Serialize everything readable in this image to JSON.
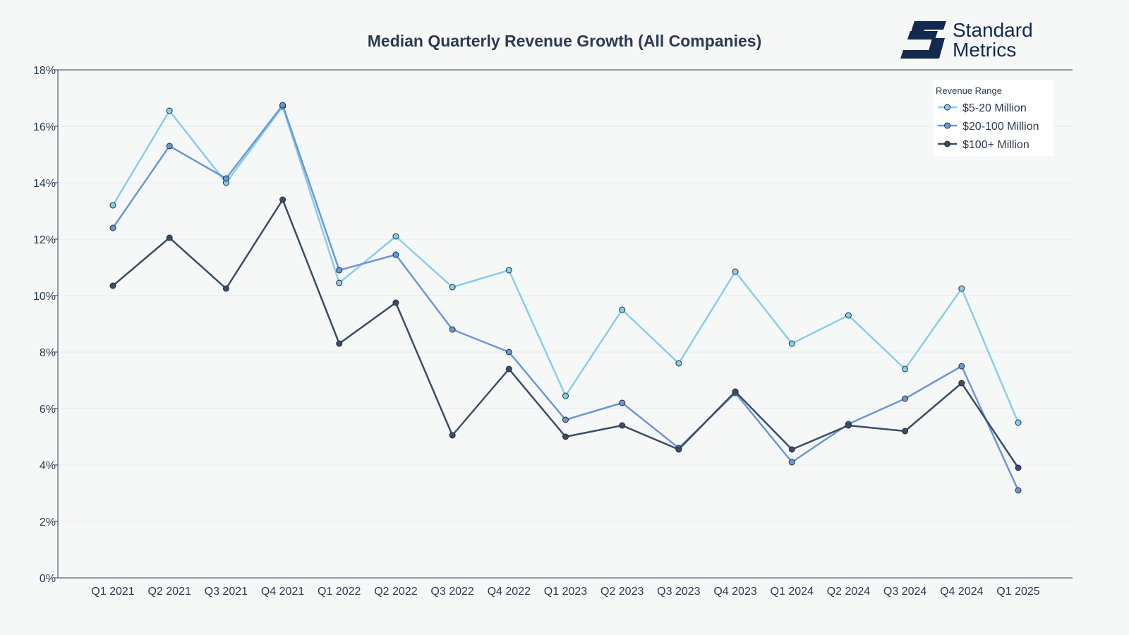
{
  "logo": {
    "line1": "Standard",
    "line2": "Metrics",
    "color": "#122a4d"
  },
  "chart_data": {
    "type": "line",
    "title": "Median Quarterly Revenue Growth (All Companies)",
    "xlabel": "",
    "ylabel": "",
    "categories": [
      "Q1 2021",
      "Q2 2021",
      "Q3 2021",
      "Q4 2021",
      "Q1 2022",
      "Q2 2022",
      "Q3 2022",
      "Q4 2022",
      "Q1 2023",
      "Q2 2023",
      "Q3 2023",
      "Q4 2023",
      "Q1 2024",
      "Q2 2024",
      "Q3 2024",
      "Q4 2024",
      "Q1 2025"
    ],
    "ylim": [
      0,
      18
    ],
    "yticks": [
      0,
      2,
      4,
      6,
      8,
      10,
      12,
      14,
      16,
      18
    ],
    "ytick_suffix": "%",
    "grid": true,
    "legend": {
      "title": "Revenue Range",
      "placement": "top-right"
    },
    "series": [
      {
        "name": "$5-20 Million",
        "color": "#87ceeb",
        "values": [
          13.2,
          16.55,
          14.0,
          16.7,
          10.45,
          12.1,
          10.3,
          10.9,
          6.45,
          9.5,
          7.6,
          10.85,
          8.3,
          9.3,
          7.4,
          10.25,
          5.5
        ]
      },
      {
        "name": "$20-100 Million",
        "color": "#6a97d4",
        "values": [
          12.4,
          15.3,
          14.15,
          16.75,
          10.9,
          11.45,
          8.8,
          8.0,
          5.6,
          6.2,
          4.6,
          6.55,
          4.1,
          5.45,
          6.35,
          7.5,
          3.1
        ]
      },
      {
        "name": "$100+ Million",
        "color": "#3b4d66",
        "values": [
          10.35,
          12.05,
          10.25,
          13.4,
          8.3,
          9.75,
          5.05,
          7.4,
          5.0,
          5.4,
          4.55,
          6.6,
          4.55,
          5.4,
          5.2,
          6.9,
          3.9
        ]
      }
    ]
  }
}
